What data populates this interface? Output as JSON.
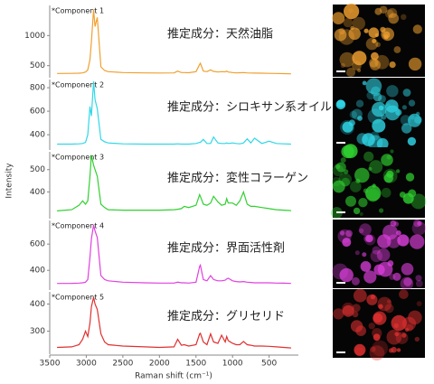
{
  "axes": {
    "xlabel": "Raman shift (cm⁻¹)",
    "ylabel": "Intensity",
    "xlim": [
      3500,
      100
    ],
    "xticks": [
      3500,
      3000,
      2500,
      2000,
      1500,
      1000,
      500
    ]
  },
  "chart_data": [
    {
      "type": "line",
      "title": "*Component 1",
      "annotation": "推定成分：天然油脂",
      "color": "#f0a030",
      "ylim": [
        300,
        1500
      ],
      "yticks": [
        500,
        1000
      ],
      "x": [
        3400,
        3200,
        3100,
        3050,
        3010,
        2980,
        2950,
        2930,
        2900,
        2880,
        2850,
        2800,
        2750,
        2700,
        2500,
        2200,
        2000,
        1800,
        1750,
        1700,
        1660,
        1600,
        1500,
        1450,
        1440,
        1400,
        1350,
        1300,
        1260,
        1200,
        1150,
        1100,
        1080,
        1060,
        1000,
        950,
        900,
        850,
        800,
        750,
        700,
        600,
        500,
        400,
        300,
        200
      ],
      "values": [
        370,
        372,
        375,
        380,
        395,
        430,
        600,
        900,
        1430,
        1150,
        1300,
        480,
        420,
        400,
        385,
        380,
        378,
        380,
        410,
        385,
        385,
        382,
        400,
        520,
        540,
        410,
        400,
        430,
        405,
        395,
        400,
        398,
        410,
        395,
        385,
        380,
        382,
        385,
        380,
        378,
        376,
        375,
        372,
        370,
        368,
        365
      ]
    },
    {
      "type": "line",
      "title": "*Component 2",
      "annotation": "推定成分：シロキサン系オイル",
      "color": "#30d8e8",
      "ylim": [
        270,
        870
      ],
      "yticks": [
        400,
        600,
        800
      ],
      "x": [
        3400,
        3200,
        3100,
        3050,
        3010,
        2980,
        2950,
        2930,
        2900,
        2880,
        2850,
        2800,
        2750,
        2700,
        2500,
        2200,
        2000,
        1800,
        1750,
        1700,
        1660,
        1600,
        1500,
        1450,
        1440,
        1400,
        1350,
        1300,
        1260,
        1200,
        1150,
        1100,
        1080,
        1060,
        1000,
        950,
        900,
        850,
        800,
        750,
        700,
        600,
        500,
        400,
        300,
        200
      ],
      "values": [
        320,
        320,
        322,
        325,
        335,
        400,
        640,
        560,
        855,
        700,
        620,
        360,
        340,
        330,
        322,
        320,
        320,
        320,
        322,
        320,
        320,
        320,
        325,
        335,
        335,
        360,
        325,
        325,
        380,
        330,
        325,
        325,
        330,
        325,
        330,
        325,
        322,
        330,
        365,
        330,
        370,
        325,
        345,
        325,
        322,
        320
      ]
    },
    {
      "type": "line",
      "title": "*Component 3",
      "annotation": "推定成分：変性コラーゲン",
      "color": "#30d030",
      "ylim": [
        280,
        580
      ],
      "yticks": [
        400,
        500
      ],
      "x": [
        3400,
        3200,
        3100,
        3050,
        3010,
        2980,
        2950,
        2930,
        2900,
        2880,
        2850,
        2800,
        2750,
        2700,
        2500,
        2200,
        2000,
        1800,
        1750,
        1700,
        1660,
        1600,
        1500,
        1450,
        1440,
        1400,
        1350,
        1300,
        1260,
        1200,
        1150,
        1100,
        1080,
        1060,
        1000,
        950,
        900,
        850,
        800,
        750,
        700,
        600,
        500,
        400,
        300,
        200
      ],
      "values": [
        315,
        320,
        340,
        360,
        345,
        360,
        470,
        565,
        520,
        500,
        470,
        345,
        330,
        320,
        318,
        318,
        318,
        320,
        322,
        325,
        335,
        330,
        340,
        388,
        380,
        345,
        340,
        350,
        380,
        355,
        340,
        345,
        370,
        350,
        350,
        340,
        360,
        400,
        345,
        335,
        335,
        330,
        325,
        320,
        318,
        316
      ]
    },
    {
      "type": "line",
      "title": "*Component 4",
      "annotation": "推定成分：界面活性剤",
      "color": "#e040e0",
      "ylim": [
        250,
        780
      ],
      "yticks": [
        400,
        600
      ],
      "x": [
        3400,
        3200,
        3100,
        3050,
        3010,
        2980,
        2950,
        2930,
        2900,
        2880,
        2850,
        2800,
        2750,
        2700,
        2500,
        2200,
        2000,
        1800,
        1750,
        1700,
        1660,
        1600,
        1500,
        1450,
        1440,
        1400,
        1350,
        1300,
        1260,
        1200,
        1150,
        1100,
        1080,
        1060,
        1000,
        950,
        900,
        850,
        800,
        750,
        700,
        600,
        500,
        400,
        300,
        200
      ],
      "values": [
        300,
        301,
        303,
        305,
        310,
        330,
        500,
        640,
        745,
        700,
        650,
        360,
        330,
        320,
        310,
        305,
        303,
        303,
        310,
        305,
        305,
        303,
        310,
        430,
        440,
        330,
        320,
        360,
        330,
        320,
        320,
        325,
        335,
        340,
        320,
        315,
        312,
        315,
        310,
        308,
        305,
        305,
        305,
        303,
        302,
        300
      ]
    },
    {
      "type": "line",
      "title": "*Component 5",
      "annotation": "推定成分：グリセリド",
      "color": "#e03030",
      "ylim": [
        215,
        445
      ],
      "yticks": [
        300,
        400
      ],
      "x": [
        3400,
        3200,
        3100,
        3050,
        3010,
        2980,
        2950,
        2930,
        2900,
        2880,
        2850,
        2800,
        2750,
        2700,
        2500,
        2200,
        2000,
        1800,
        1750,
        1700,
        1660,
        1600,
        1500,
        1450,
        1440,
        1400,
        1350,
        1300,
        1260,
        1200,
        1150,
        1100,
        1080,
        1060,
        1000,
        950,
        900,
        850,
        800,
        750,
        700,
        600,
        500,
        400,
        300,
        200
      ],
      "values": [
        240,
        242,
        250,
        270,
        300,
        280,
        330,
        390,
        425,
        400,
        380,
        290,
        260,
        250,
        245,
        242,
        240,
        242,
        270,
        248,
        250,
        245,
        250,
        290,
        292,
        260,
        250,
        290,
        260,
        255,
        285,
        260,
        280,
        265,
        255,
        250,
        250,
        262,
        250,
        248,
        245,
        245,
        244,
        242,
        240,
        238
      ]
    }
  ]
}
